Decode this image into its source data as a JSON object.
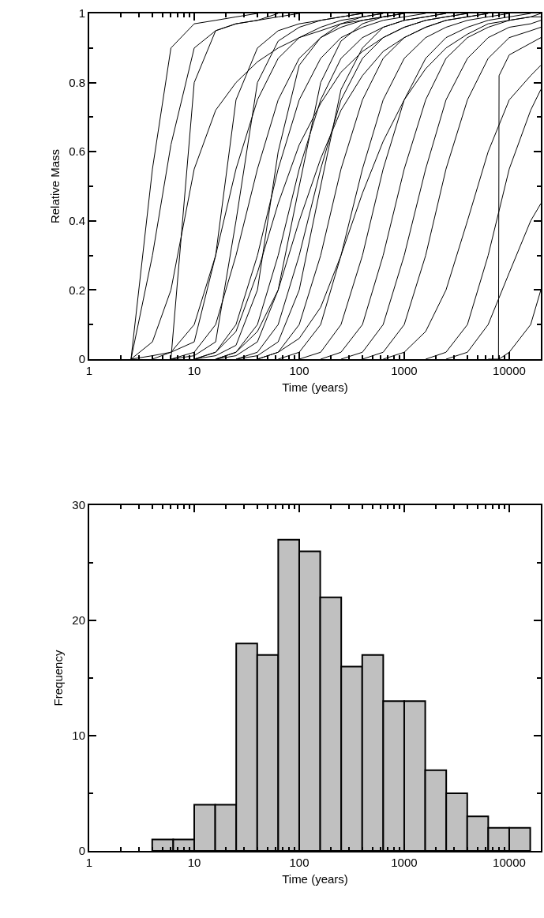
{
  "chart_data": [
    {
      "type": "line",
      "xlabel": "Time (years)",
      "ylabel": "Relative Mass",
      "log": "x",
      "grid": false,
      "marker": "none",
      "line_style": "solid",
      "xlim": [
        1,
        20000
      ],
      "xticks": [
        1,
        {
          "value": 2,
          "label": null
        },
        {
          "value": 3,
          "label": null
        },
        {
          "value": 4,
          "label": null
        },
        {
          "value": 5,
          "label": null
        },
        {
          "value": 6,
          "label": null
        },
        {
          "value": 7,
          "label": null
        },
        {
          "value": 8,
          "label": null
        },
        {
          "value": 9,
          "label": null
        },
        10,
        {
          "value": 20,
          "label": null
        },
        {
          "value": 30,
          "label": null
        },
        {
          "value": 40,
          "label": null
        },
        {
          "value": 50,
          "label": null
        },
        {
          "value": 60,
          "label": null
        },
        {
          "value": 70,
          "label": null
        },
        {
          "value": 80,
          "label": null
        },
        {
          "value": 90,
          "label": null
        },
        100,
        {
          "value": 200,
          "label": null
        },
        {
          "value": 300,
          "label": null
        },
        {
          "value": 400,
          "label": null
        },
        {
          "value": 500,
          "label": null
        },
        {
          "value": 600,
          "label": null
        },
        {
          "value": 700,
          "label": null
        },
        {
          "value": 800,
          "label": null
        },
        {
          "value": 900,
          "label": null
        },
        1000,
        {
          "value": 2000,
          "label": null
        },
        {
          "value": 3000,
          "label": null
        },
        {
          "value": 4000,
          "label": null
        },
        {
          "value": 5000,
          "label": null
        },
        {
          "value": 6000,
          "label": null
        },
        {
          "value": 7000,
          "label": null
        },
        {
          "value": 8000,
          "label": null
        },
        {
          "value": 9000,
          "label": null
        },
        10000,
        {
          "value": 20000,
          "label": null
        }
      ],
      "ylim": [
        0,
        1
      ],
      "yticks": [
        0,
        {
          "value": 0.1,
          "label": null
        },
        0.2,
        {
          "value": 0.3,
          "label": null
        },
        0.4,
        {
          "value": 0.5,
          "label": null
        },
        0.6,
        {
          "value": 0.7,
          "label": null
        },
        0.8,
        {
          "value": 0.9,
          "label": null
        },
        1
      ],
      "x": [
        2.5,
        4,
        6,
        10,
        16,
        25,
        40,
        63,
        100,
        160,
        250,
        400,
        630,
        1000,
        1600,
        2500,
        4000,
        6300,
        10000,
        16000,
        20000
      ],
      "series": [
        {
          "color": "#000000",
          "values": [
            0,
            0.55,
            0.9,
            0.97,
            0.98,
            0.99,
            1,
            null,
            null,
            null,
            null,
            null,
            null,
            null,
            null,
            null,
            null,
            null,
            null,
            null,
            null
          ]
        },
        {
          "color": "#000000",
          "values": [
            0,
            0.3,
            0.62,
            0.9,
            0.95,
            0.97,
            0.98,
            1,
            null,
            null,
            null,
            null,
            null,
            null,
            null,
            null,
            null,
            null,
            null,
            null,
            null
          ]
        },
        {
          "color": "#000000",
          "values": [
            0,
            0.05,
            0.2,
            0.55,
            0.72,
            0.8,
            0.86,
            0.9,
            0.93,
            0.95,
            0.97,
            0.98,
            0.99,
            1,
            null,
            null,
            null,
            null,
            null,
            null,
            null
          ]
        },
        {
          "color": "#000000",
          "values": [
            null,
            null,
            0,
            0.8,
            0.95,
            0.97,
            0.98,
            0.99,
            1,
            null,
            null,
            null,
            null,
            null,
            null,
            null,
            null,
            null,
            null,
            null,
            null
          ]
        },
        {
          "color": "#000000",
          "values": [
            0,
            0.01,
            0.02,
            0.05,
            0.3,
            0.75,
            0.9,
            0.95,
            0.97,
            0.98,
            0.99,
            1,
            null,
            null,
            null,
            null,
            null,
            null,
            null,
            null,
            null
          ]
        },
        {
          "color": "#000000",
          "values": [
            null,
            0,
            0.02,
            0.1,
            0.3,
            0.55,
            0.75,
            0.87,
            0.93,
            0.96,
            0.98,
            0.99,
            1,
            null,
            null,
            null,
            null,
            null,
            null,
            null,
            null
          ]
        },
        {
          "color": "#000000",
          "values": [
            null,
            null,
            0,
            0.02,
            0.1,
            0.3,
            0.55,
            0.75,
            0.87,
            0.93,
            0.96,
            0.98,
            0.99,
            1,
            null,
            null,
            null,
            null,
            null,
            null,
            null
          ]
        },
        {
          "color": "#000000",
          "values": [
            null,
            null,
            0,
            0.01,
            0.05,
            0.4,
            0.8,
            0.92,
            0.96,
            0.98,
            0.99,
            1,
            null,
            null,
            null,
            null,
            null,
            null,
            null,
            null,
            null
          ]
        },
        {
          "color": "#000000",
          "values": [
            null,
            null,
            null,
            0,
            0.02,
            0.1,
            0.3,
            0.55,
            0.75,
            0.87,
            0.93,
            0.96,
            0.98,
            0.99,
            1,
            null,
            null,
            null,
            null,
            null,
            null
          ]
        },
        {
          "color": "#000000",
          "values": [
            null,
            null,
            null,
            0,
            0.01,
            0.04,
            0.2,
            0.6,
            0.85,
            0.93,
            0.97,
            0.99,
            1,
            null,
            null,
            null,
            null,
            null,
            null,
            null,
            null
          ]
        },
        {
          "color": "#000000",
          "values": [
            null,
            null,
            null,
            0,
            0.02,
            0.08,
            0.25,
            0.45,
            0.62,
            0.74,
            0.83,
            0.89,
            0.93,
            0.96,
            0.98,
            0.99,
            1,
            null,
            null,
            null,
            null
          ]
        },
        {
          "color": "#000000",
          "values": [
            null,
            null,
            null,
            null,
            0,
            0.02,
            0.1,
            0.3,
            0.55,
            0.75,
            0.87,
            0.93,
            0.96,
            0.98,
            0.99,
            1,
            null,
            null,
            null,
            null,
            null
          ]
        },
        {
          "color": "#000000",
          "values": [
            null,
            null,
            null,
            null,
            0,
            0.01,
            0.05,
            0.2,
            0.5,
            0.8,
            0.92,
            0.97,
            0.99,
            1,
            null,
            null,
            null,
            null,
            null,
            null,
            null
          ]
        },
        {
          "color": "#000000",
          "values": [
            null,
            null,
            null,
            null,
            0,
            0.02,
            0.08,
            0.2,
            0.4,
            0.58,
            0.72,
            0.82,
            0.89,
            0.93,
            0.96,
            0.98,
            0.99,
            1,
            null,
            null,
            null
          ]
        },
        {
          "color": "#000000",
          "values": [
            null,
            null,
            null,
            null,
            null,
            0,
            0.02,
            0.1,
            0.3,
            0.55,
            0.75,
            0.87,
            0.93,
            0.96,
            0.98,
            0.99,
            1,
            null,
            null,
            null,
            null
          ]
        },
        {
          "color": "#000000",
          "values": [
            null,
            null,
            null,
            null,
            null,
            0,
            0.01,
            0.05,
            0.2,
            0.5,
            0.78,
            0.9,
            0.96,
            0.98,
            0.99,
            1,
            null,
            null,
            null,
            null,
            null
          ]
        },
        {
          "color": "#000000",
          "values": [
            null,
            null,
            null,
            null,
            null,
            null,
            0,
            0.02,
            0.1,
            0.3,
            0.55,
            0.75,
            0.87,
            0.93,
            0.96,
            0.98,
            0.99,
            1,
            null,
            null,
            null
          ]
        },
        {
          "color": "#000000",
          "values": [
            null,
            null,
            null,
            null,
            null,
            null,
            0,
            0.02,
            0.06,
            0.15,
            0.3,
            0.48,
            0.63,
            0.75,
            0.84,
            0.9,
            0.94,
            0.97,
            0.98,
            0.99,
            1
          ]
        },
        {
          "color": "#000000",
          "values": [
            null,
            null,
            null,
            null,
            null,
            null,
            null,
            0,
            0.02,
            0.1,
            0.3,
            0.55,
            0.75,
            0.87,
            0.93,
            0.96,
            0.98,
            0.99,
            1,
            null,
            null
          ]
        },
        {
          "color": "#000000",
          "values": [
            null,
            null,
            null,
            null,
            null,
            null,
            null,
            null,
            0,
            0.02,
            0.1,
            0.3,
            0.55,
            0.75,
            0.87,
            0.93,
            0.96,
            0.98,
            0.99,
            1,
            null
          ]
        },
        {
          "color": "#000000",
          "values": [
            null,
            null,
            null,
            null,
            null,
            null,
            null,
            null,
            null,
            0,
            0.02,
            0.1,
            0.3,
            0.55,
            0.75,
            0.87,
            0.93,
            0.96,
            0.98,
            0.99,
            0.99
          ]
        },
        {
          "color": "#000000",
          "values": [
            null,
            null,
            null,
            null,
            null,
            null,
            null,
            null,
            null,
            null,
            0,
            0.02,
            0.1,
            0.3,
            0.55,
            0.75,
            0.87,
            0.93,
            0.96,
            0.97,
            0.98
          ]
        },
        {
          "color": "#000000",
          "values": [
            null,
            null,
            null,
            null,
            null,
            null,
            null,
            null,
            null,
            null,
            null,
            0,
            0.02,
            0.1,
            0.3,
            0.55,
            0.75,
            0.87,
            0.93,
            0.95,
            0.96
          ]
        },
        {
          "color": "#000000",
          "values": [
            null,
            null,
            null,
            null,
            null,
            null,
            null,
            null,
            null,
            null,
            null,
            null,
            0,
            0.02,
            0.08,
            0.2,
            0.4,
            0.6,
            0.75,
            0.82,
            0.85
          ]
        },
        {
          "color": "#000000",
          "values": [
            null,
            null,
            null,
            null,
            null,
            null,
            null,
            null,
            null,
            null,
            null,
            null,
            null,
            null,
            0,
            0.02,
            0.1,
            0.3,
            0.55,
            0.72,
            0.78
          ]
        },
        {
          "color": "#000000",
          "values": [
            null,
            null,
            null,
            null,
            null,
            null,
            null,
            null,
            null,
            null,
            null,
            null,
            null,
            null,
            null,
            0,
            0.02,
            0.1,
            0.25,
            0.4,
            0.45
          ]
        },
        {
          "color": "#000000",
          "x": [
            6300,
            7900,
            8000,
            10000,
            20000
          ],
          "values": [
            0,
            0,
            0.82,
            0.88,
            0.93
          ]
        },
        {
          "color": "#000000",
          "x": [
            8000,
            10000,
            16000,
            20000
          ],
          "values": [
            0,
            0.02,
            0.1,
            0.2
          ]
        }
      ]
    },
    {
      "type": "histogram",
      "xlabel": "Time (years)",
      "ylabel": "Frequency",
      "log": "x",
      "grid": false,
      "color": "#c0c0c0",
      "bins": [
        3.98,
        6.31,
        10,
        15.85,
        25.12,
        39.81,
        63.1,
        100,
        158.5,
        251.2,
        398.1,
        631,
        1000,
        1585,
        2512,
        3981,
        6310,
        10000,
        15849
      ],
      "values": [
        1,
        1,
        4,
        4,
        18,
        17,
        27,
        26,
        22,
        16,
        17,
        13,
        13,
        7,
        5,
        3,
        2,
        2
      ],
      "xlim": [
        1,
        20000
      ],
      "xticks": [
        1,
        {
          "value": 2,
          "label": null
        },
        {
          "value": 3,
          "label": null
        },
        {
          "value": 4,
          "label": null
        },
        {
          "value": 5,
          "label": null
        },
        {
          "value": 6,
          "label": null
        },
        {
          "value": 7,
          "label": null
        },
        {
          "value": 8,
          "label": null
        },
        {
          "value": 9,
          "label": null
        },
        10,
        {
          "value": 20,
          "label": null
        },
        {
          "value": 30,
          "label": null
        },
        {
          "value": 40,
          "label": null
        },
        {
          "value": 50,
          "label": null
        },
        {
          "value": 60,
          "label": null
        },
        {
          "value": 70,
          "label": null
        },
        {
          "value": 80,
          "label": null
        },
        {
          "value": 90,
          "label": null
        },
        100,
        {
          "value": 200,
          "label": null
        },
        {
          "value": 300,
          "label": null
        },
        {
          "value": 400,
          "label": null
        },
        {
          "value": 500,
          "label": null
        },
        {
          "value": 600,
          "label": null
        },
        {
          "value": 700,
          "label": null
        },
        {
          "value": 800,
          "label": null
        },
        {
          "value": 900,
          "label": null
        },
        1000,
        {
          "value": 2000,
          "label": null
        },
        {
          "value": 3000,
          "label": null
        },
        {
          "value": 4000,
          "label": null
        },
        {
          "value": 5000,
          "label": null
        },
        {
          "value": 6000,
          "label": null
        },
        {
          "value": 7000,
          "label": null
        },
        {
          "value": 8000,
          "label": null
        },
        {
          "value": 9000,
          "label": null
        },
        10000,
        {
          "value": 20000,
          "label": null
        }
      ],
      "ylim": [
        0,
        30
      ],
      "yticks": [
        0,
        {
          "value": 5,
          "label": null
        },
        10,
        {
          "value": 15,
          "label": null
        },
        20,
        {
          "value": 25,
          "label": null
        },
        30
      ]
    }
  ]
}
